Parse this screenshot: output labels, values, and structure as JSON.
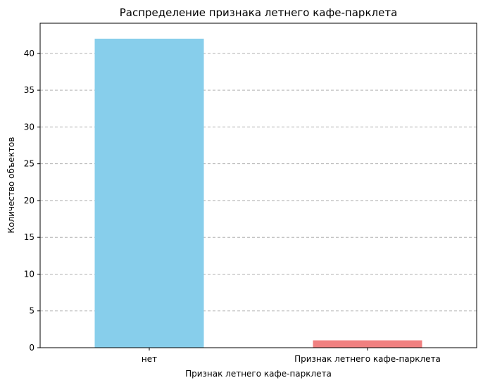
{
  "chart_data": {
    "type": "bar",
    "title": "Распределение признака летнего кафе-парклета",
    "xlabel": "Признак летнего кафе-парклета",
    "ylabel": "Количество объектов",
    "categories": [
      "нет",
      "Признак летнего кафе-парклета"
    ],
    "values": [
      42,
      1
    ],
    "colors": [
      "#87CEEB",
      "#F08080"
    ],
    "ylim": [
      0,
      44.1
    ],
    "yticks": [
      0,
      5,
      10,
      15,
      20,
      25,
      30,
      35,
      40
    ],
    "grid": true,
    "grid_axis": "y",
    "legend": "none"
  }
}
